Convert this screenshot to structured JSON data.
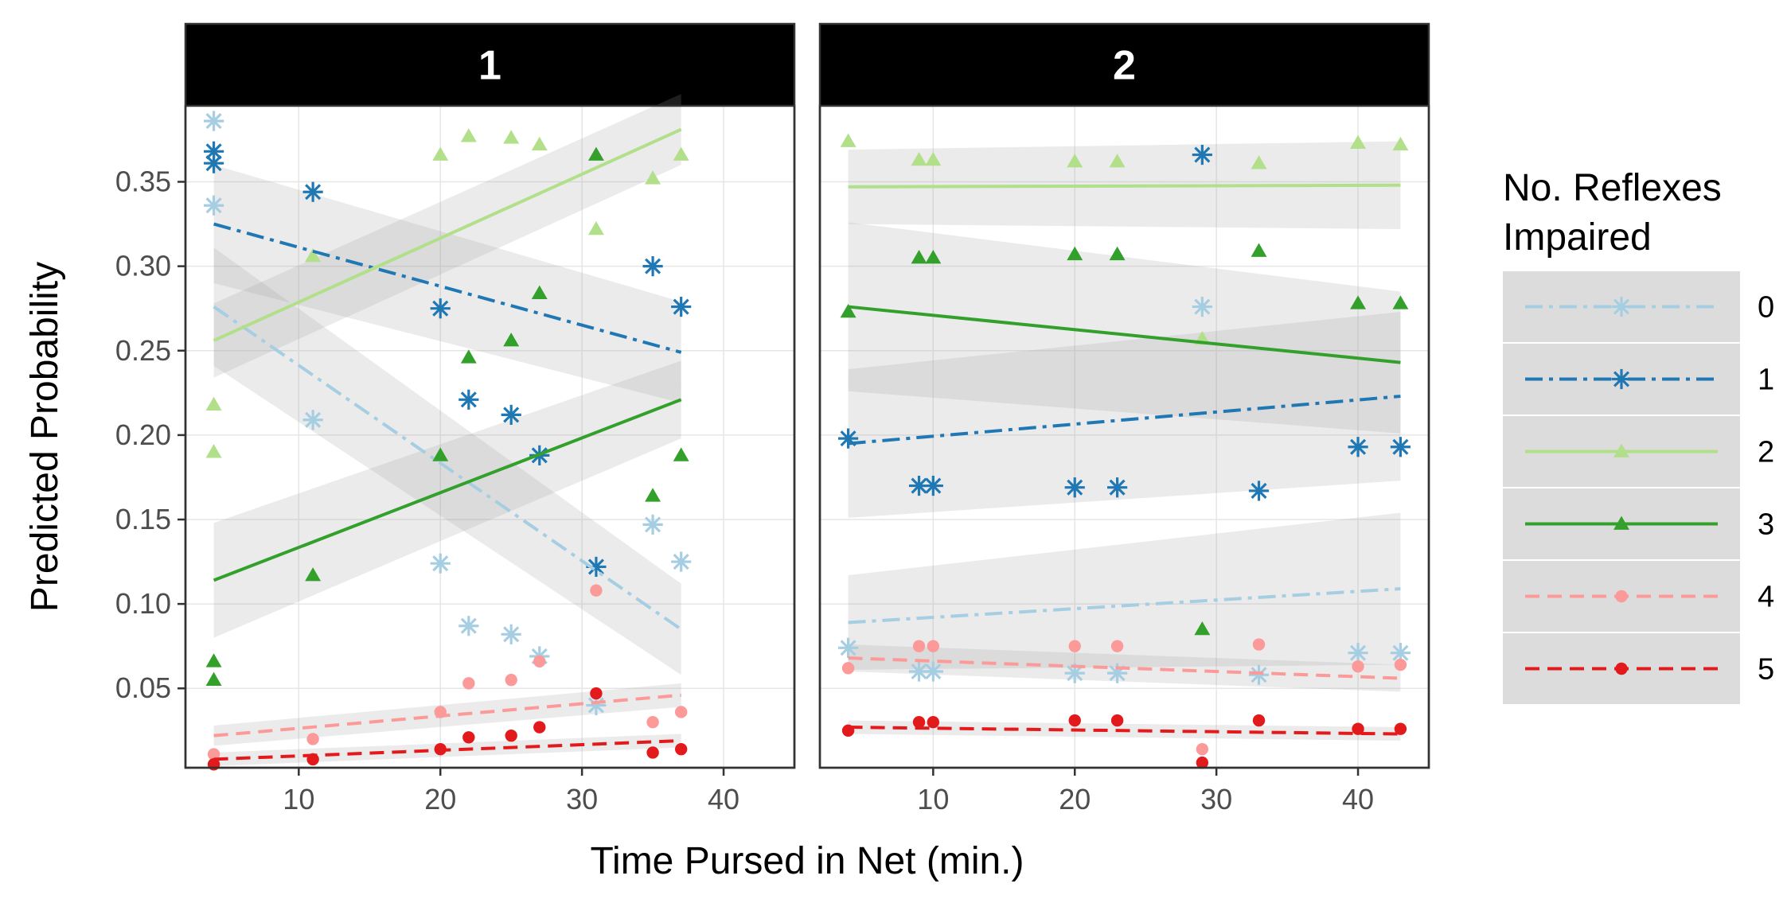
{
  "chart_data": {
    "type": "scatter",
    "xlabel": "Time Pursed in Net (min.)",
    "ylabel": "Predicted Probability",
    "xlim": [
      2,
      45
    ],
    "ylim": [
      0.003,
      0.395
    ],
    "xticks": [
      10,
      20,
      30,
      40
    ],
    "yticks": [
      0.05,
      0.1,
      0.15,
      0.2,
      0.25,
      0.3,
      0.35
    ],
    "ytick_labels": [
      "0.05",
      "0.10",
      "0.15",
      "0.20",
      "0.25",
      "0.30",
      "0.35"
    ],
    "grid": true,
    "legend": {
      "title": "No. Reflexes Impaired",
      "title_lines": [
        "No. Reflexes",
        "Impaired"
      ],
      "position": "right"
    },
    "series_style": [
      {
        "name": "0",
        "color": "#a6cee3",
        "marker": "asterisk",
        "dash": "dashdot"
      },
      {
        "name": "1",
        "color": "#1f78b4",
        "marker": "asterisk",
        "dash": "dashdot"
      },
      {
        "name": "2",
        "color": "#b2df8a",
        "marker": "triangle",
        "dash": "solid"
      },
      {
        "name": "3",
        "color": "#33a02c",
        "marker": "triangle",
        "dash": "solid"
      },
      {
        "name": "4",
        "color": "#fb9a99",
        "marker": "circle",
        "dash": "dashed"
      },
      {
        "name": "5",
        "color": "#e31a1c",
        "marker": "circle",
        "dash": "dashed"
      }
    ],
    "panels": [
      {
        "label": "1",
        "series": [
          {
            "name": "0",
            "points": [
              [
                4,
                0.386
              ],
              [
                4,
                0.336
              ],
              [
                11,
                0.209
              ],
              [
                20,
                0.124
              ],
              [
                22,
                0.087
              ],
              [
                25,
                0.082
              ],
              [
                27,
                0.069
              ],
              [
                31,
                0.04
              ],
              [
                35,
                0.147
              ],
              [
                37,
                0.125
              ]
            ],
            "fit": {
              "x": [
                4,
                37
              ],
              "y": [
                0.276,
                0.085
              ],
              "band": [
                0.035,
                0.027
              ]
            }
          },
          {
            "name": "1",
            "points": [
              [
                4,
                0.368
              ],
              [
                4,
                0.361
              ],
              [
                11,
                0.344
              ],
              [
                20,
                0.275
              ],
              [
                22,
                0.221
              ],
              [
                25,
                0.212
              ],
              [
                27,
                0.188
              ],
              [
                31,
                0.122
              ],
              [
                35,
                0.3
              ],
              [
                37,
                0.276
              ]
            ],
            "fit": {
              "x": [
                4,
                37
              ],
              "y": [
                0.325,
                0.249
              ],
              "band": [
                0.035,
                0.03
              ]
            }
          },
          {
            "name": "2",
            "points": [
              [
                4,
                0.218
              ],
              [
                4,
                0.19
              ],
              [
                11,
                0.306
              ],
              [
                20,
                0.366
              ],
              [
                22,
                0.377
              ],
              [
                25,
                0.376
              ],
              [
                27,
                0.372
              ],
              [
                31,
                0.322
              ],
              [
                35,
                0.352
              ],
              [
                37,
                0.366
              ]
            ],
            "fit": {
              "x": [
                4,
                37
              ],
              "y": [
                0.256,
                0.381
              ],
              "band": [
                0.022,
                0.021
              ]
            }
          },
          {
            "name": "3",
            "points": [
              [
                4,
                0.066
              ],
              [
                4,
                0.055
              ],
              [
                11,
                0.117
              ],
              [
                20,
                0.188
              ],
              [
                22,
                0.246
              ],
              [
                25,
                0.256
              ],
              [
                27,
                0.284
              ],
              [
                31,
                0.366
              ],
              [
                35,
                0.164
              ],
              [
                37,
                0.188
              ]
            ],
            "fit": {
              "x": [
                4,
                37
              ],
              "y": [
                0.114,
                0.221
              ],
              "band": [
                0.034,
                0.023
              ]
            }
          },
          {
            "name": "4",
            "points": [
              [
                4,
                0.011
              ],
              [
                11,
                0.02
              ],
              [
                20,
                0.036
              ],
              [
                22,
                0.053
              ],
              [
                25,
                0.055
              ],
              [
                27,
                0.066
              ],
              [
                31,
                0.108
              ],
              [
                35,
                0.03
              ],
              [
                37,
                0.036
              ]
            ],
            "fit": {
              "x": [
                4,
                37
              ],
              "y": [
                0.022,
                0.046
              ],
              "band": [
                0.006,
                0.007
              ]
            }
          },
          {
            "name": "5",
            "points": [
              [
                4,
                0.005
              ],
              [
                11,
                0.008
              ],
              [
                20,
                0.014
              ],
              [
                22,
                0.021
              ],
              [
                25,
                0.022
              ],
              [
                27,
                0.027
              ],
              [
                31,
                0.047
              ],
              [
                35,
                0.012
              ],
              [
                37,
                0.014
              ]
            ],
            "fit": {
              "x": [
                4,
                37
              ],
              "y": [
                0.008,
                0.019
              ],
              "band": [
                0.004,
                0.004
              ]
            }
          }
        ]
      },
      {
        "label": "2",
        "series": [
          {
            "name": "0",
            "points": [
              [
                4,
                0.074
              ],
              [
                9,
                0.06
              ],
              [
                10,
                0.06
              ],
              [
                20,
                0.059
              ],
              [
                23,
                0.059
              ],
              [
                29,
                0.276
              ],
              [
                33,
                0.058
              ],
              [
                40,
                0.071
              ],
              [
                43,
                0.071
              ]
            ],
            "fit": {
              "x": [
                4,
                43
              ],
              "y": [
                0.089,
                0.109
              ],
              "band": [
                0.028,
                0.045
              ]
            }
          },
          {
            "name": "1",
            "points": [
              [
                4,
                0.198
              ],
              [
                9,
                0.17
              ],
              [
                10,
                0.17
              ],
              [
                20,
                0.169
              ],
              [
                23,
                0.169
              ],
              [
                29,
                0.366
              ],
              [
                33,
                0.167
              ],
              [
                40,
                0.193
              ],
              [
                43,
                0.193
              ]
            ],
            "fit": {
              "x": [
                4,
                43
              ],
              "y": [
                0.195,
                0.223
              ],
              "band": [
                0.044,
                0.05
              ]
            }
          },
          {
            "name": "2",
            "points": [
              [
                4,
                0.374
              ],
              [
                9,
                0.363
              ],
              [
                10,
                0.363
              ],
              [
                20,
                0.362
              ],
              [
                23,
                0.362
              ],
              [
                29,
                0.257
              ],
              [
                33,
                0.361
              ],
              [
                40,
                0.373
              ],
              [
                43,
                0.372
              ]
            ],
            "fit": {
              "x": [
                4,
                43
              ],
              "y": [
                0.347,
                0.348
              ],
              "band": [
                0.022,
                0.026
              ]
            }
          },
          {
            "name": "3",
            "points": [
              [
                4,
                0.273
              ],
              [
                9,
                0.305
              ],
              [
                10,
                0.305
              ],
              [
                20,
                0.307
              ],
              [
                23,
                0.307
              ],
              [
                29,
                0.085
              ],
              [
                33,
                0.309
              ],
              [
                40,
                0.278
              ],
              [
                43,
                0.278
              ]
            ],
            "fit": {
              "x": [
                4,
                43
              ],
              "y": [
                0.276,
                0.243
              ],
              "band": [
                0.05,
                0.042
              ]
            }
          },
          {
            "name": "4",
            "points": [
              [
                4,
                0.062
              ],
              [
                9,
                0.075
              ],
              [
                10,
                0.075
              ],
              [
                20,
                0.075
              ],
              [
                23,
                0.075
              ],
              [
                29,
                0.014
              ],
              [
                33,
                0.076
              ],
              [
                40,
                0.063
              ],
              [
                43,
                0.064
              ]
            ],
            "fit": {
              "x": [
                4,
                43
              ],
              "y": [
                0.068,
                0.056
              ],
              "band": [
                0.008,
                0.008
              ]
            }
          },
          {
            "name": "5",
            "points": [
              [
                4,
                0.025
              ],
              [
                9,
                0.03
              ],
              [
                10,
                0.03
              ],
              [
                20,
                0.031
              ],
              [
                23,
                0.031
              ],
              [
                29,
                0.006
              ],
              [
                33,
                0.031
              ],
              [
                40,
                0.026
              ],
              [
                43,
                0.026
              ]
            ],
            "fit": {
              "x": [
                4,
                43
              ],
              "y": [
                0.027,
                0.023
              ],
              "band": [
                0.004,
                0.004
              ]
            }
          }
        ]
      }
    ]
  }
}
